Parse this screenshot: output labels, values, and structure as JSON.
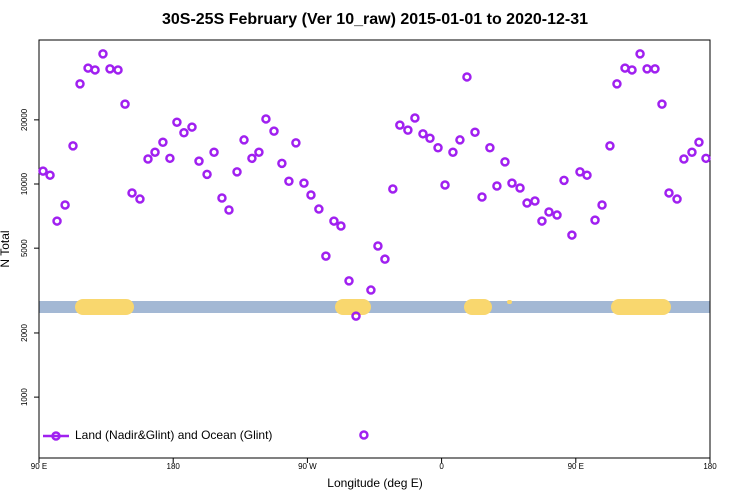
{
  "chart_data": {
    "type": "scatter",
    "title": "30S-25S February (Ver 10_raw)   2015-01-01 to 2020-12-31",
    "xlabel": "Longitude (deg E)",
    "ylabel": "N Total",
    "log_y": true,
    "legend": "bottomleft",
    "xlim": [
      90,
      540
    ],
    "ylim": [
      518,
      47400
    ],
    "xticks": [
      {
        "value": 90,
        "label": "90 E"
      },
      180,
      {
        "value": 270,
        "label": "90 W"
      },
      {
        "value": 360,
        "label": "0"
      },
      {
        "value": 450,
        "label": "90 E"
      },
      {
        "value": 540,
        "label": "180"
      }
    ],
    "yticks": [
      1000,
      2000,
      5000,
      10000,
      20000
    ],
    "x": [
      92.7,
      97.4,
      102.1,
      107.5,
      112.8,
      117.5,
      122.9,
      127.6,
      132.9,
      137.6,
      143,
      147.7,
      152.4,
      157.7,
      163.1,
      167.8,
      173.1,
      177.8,
      182.5,
      187.2,
      192.6,
      197.3,
      202.7,
      207.4,
      212.7,
      217.4,
      222.8,
      227.5,
      232.8,
      237.5,
      242.2,
      247.6,
      252.9,
      257.6,
      262.3,
      267.7,
      272.4,
      277.7,
      282.4,
      287.8,
      292.5,
      297.9,
      302.6,
      307.9,
      312.6,
      317.3,
      322,
      327.3,
      332,
      337.4,
      342.1,
      347.5,
      352.2,
      357.6,
      362.3,
      367.6,
      372.3,
      377,
      382.4,
      387.1,
      392.4,
      397.1,
      402.5,
      407.2,
      412.6,
      417.3,
      422.6,
      427.3,
      432,
      437.4,
      442.1,
      447.4,
      452.8,
      457.5,
      462.9,
      467.6,
      472.9,
      477.6,
      483,
      487.7,
      493.1,
      497.8,
      503.1,
      507.8,
      512.5,
      517.9,
      522.5,
      527.9,
      532.6,
      537.3
    ],
    "series": [
      {
        "name": "Land (Nadir&Glint) and Ocean (Glint)",
        "color": "#a020f0",
        "values": [
          11500,
          11000,
          6700,
          7970,
          15100,
          29500,
          35000,
          34300,
          40800,
          34700,
          34300,
          23700,
          9080,
          8500,
          13100,
          14100,
          15700,
          13200,
          19500,
          17400,
          18500,
          12800,
          11100,
          14100,
          8600,
          7550,
          11400,
          16100,
          13200,
          14100,
          20200,
          17700,
          12500,
          10300,
          15600,
          10100,
          8880,
          7630,
          4590,
          6700,
          6350,
          3510,
          2400,
          664,
          3180,
          5120,
          4440,
          9480,
          18900,
          17900,
          20400,
          17200,
          16400,
          14800,
          9890,
          14100,
          16100,
          31800,
          17500,
          8690,
          14800,
          9790,
          12700,
          10100,
          9580,
          8140,
          8320,
          6700,
          7390,
          7150,
          10400,
          5760,
          11400,
          11000,
          6770,
          7970,
          15100,
          29500,
          35000,
          34300,
          40800,
          34700,
          34700,
          23700,
          9080,
          8500,
          13100,
          14100,
          15700,
          13200
        ]
      }
    ]
  }
}
